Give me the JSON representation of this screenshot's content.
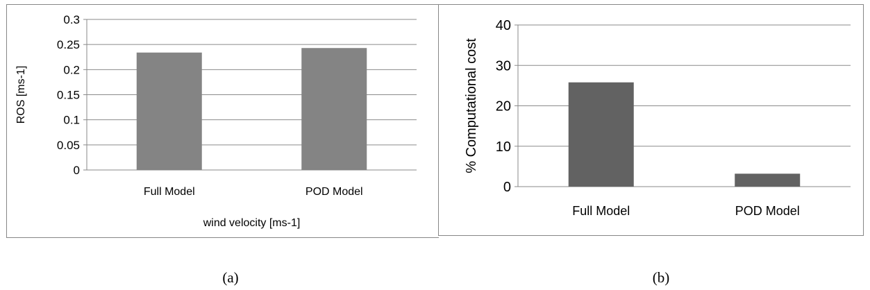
{
  "chart_data": [
    {
      "type": "bar",
      "categories": [
        "Full Model",
        "POD Model"
      ],
      "values": [
        0.234,
        0.243
      ],
      "xlabel": "wind velocity [ms-1]",
      "ylabel": "ROS [ms-1]",
      "ylim": [
        0,
        0.3
      ],
      "yticks": [
        "0",
        "0.05",
        "0.1",
        "0.15",
        "0.2",
        "0.25",
        "0.3"
      ],
      "grid": true,
      "bar_color": "#848484"
    },
    {
      "type": "bar",
      "categories": [
        "Full Model",
        "POD Model"
      ],
      "values": [
        25.8,
        3.2
      ],
      "xlabel": "",
      "ylabel": "% Computational cost",
      "ylim": [
        0,
        40
      ],
      "yticks": [
        "0",
        "10",
        "20",
        "30",
        "40"
      ],
      "grid": true,
      "bar_color": "#626262"
    }
  ],
  "captions": {
    "a": "(a)",
    "b": "(b)"
  }
}
